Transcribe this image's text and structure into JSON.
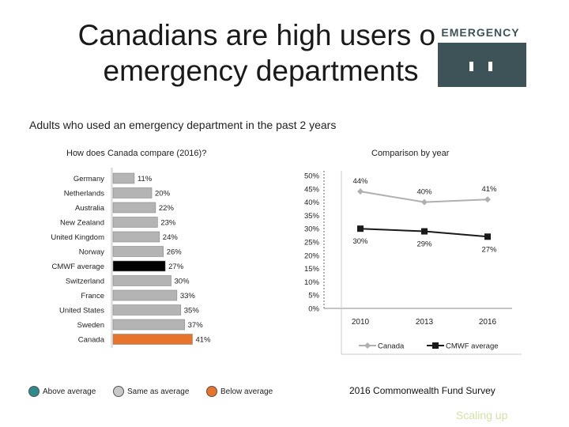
{
  "slide": {
    "title_line1": "Canadians are high users of",
    "title_line2": "emergency departments",
    "subtitle": "Adults who used an emergency department in the past 2 years",
    "logo_text": "EMERGENCY",
    "source": "2016 Commonwealth Fund Survey",
    "footer": "Scaling up"
  },
  "legend": [
    {
      "label": "Above average",
      "color": "#2e8b8b"
    },
    {
      "label": "Same as average",
      "color": "#c8c8c8"
    },
    {
      "label": "Below average",
      "color": "#e8732a"
    }
  ],
  "chart_data": [
    {
      "type": "bar",
      "orientation": "horizontal",
      "title": "How does Canada compare (2016)?",
      "categories": [
        "Germany",
        "Netherlands",
        "Australia",
        "New Zealand",
        "United Kingdom",
        "Norway",
        "CMWF average",
        "Switzerland",
        "France",
        "United States",
        "Sweden",
        "Canada"
      ],
      "values": [
        11,
        20,
        22,
        23,
        24,
        26,
        27,
        30,
        33,
        35,
        37,
        41
      ],
      "labels": [
        "11%",
        "20%",
        "22%",
        "23%",
        "24%",
        "26%",
        "27%",
        "30%",
        "33%",
        "35%",
        "37%",
        "41%"
      ],
      "colors": [
        "#b4b4b4",
        "#b4b4b4",
        "#b4b4b4",
        "#b4b4b4",
        "#b4b4b4",
        "#b4b4b4",
        "#000000",
        "#b4b4b4",
        "#b4b4b4",
        "#b4b4b4",
        "#b4b4b4",
        "#e8732a"
      ],
      "xlim": [
        0,
        50
      ]
    },
    {
      "type": "line",
      "title": "Comparison by year",
      "x": [
        "2010",
        "2013",
        "2016"
      ],
      "y_ticks": [
        "50%",
        "45%",
        "40%",
        "35%",
        "30%",
        "25%",
        "20%",
        "15%",
        "10%",
        "5%",
        "0%"
      ],
      "ylim": [
        0,
        50
      ],
      "series": [
        {
          "name": "Canada",
          "values": [
            44,
            40,
            41
          ],
          "labels": [
            "44%",
            "40%",
            "41%"
          ],
          "color": "#b0b0b0",
          "marker": "diamond"
        },
        {
          "name": "CMWF average",
          "values": [
            30,
            29,
            27
          ],
          "labels": [
            "30%",
            "29%",
            "27%"
          ],
          "color": "#1a1a1a",
          "marker": "square"
        }
      ],
      "grid": false,
      "legend_position": "bottom"
    }
  ]
}
